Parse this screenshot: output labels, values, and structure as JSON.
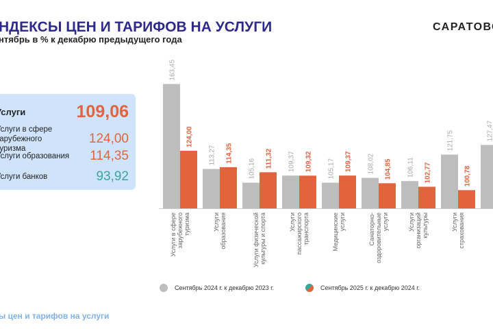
{
  "header": {
    "title": "НДЕКСЫ ЦЕН И ТАРИФОВ НА УСЛУГИ",
    "subtitle": "нтябрь в % к декабрю предыдущего года",
    "brand": "САРАТОВС"
  },
  "panel": {
    "rows": [
      {
        "label": "Услуги",
        "value": "109,06"
      },
      {
        "label": "Услуги в сфере зарубежного туризма",
        "value": "124,00"
      },
      {
        "label": "Услуги образования",
        "value": "114,35"
      },
      {
        "label": "Услуги банков",
        "value": "93,92"
      }
    ]
  },
  "footer": "ы цен и тарифов на услуги",
  "colors": {
    "gray": "#bdbdbd",
    "orange": "#e2643f",
    "teal": "#3aa59a",
    "title": "#2e2a8a"
  },
  "chart_data": {
    "type": "bar",
    "categories": [
      [
        "Услуги в сфере",
        "зарубежного",
        "туризма"
      ],
      [
        "Услуги",
        "образования"
      ],
      [
        "Услуги физической",
        "культуры и спорта"
      ],
      [
        "Услуги",
        "пассажирского",
        "транспорта"
      ],
      [
        "Медицинские",
        "услуги"
      ],
      [
        "Санаторно-",
        "оздоровительные",
        "услуги"
      ],
      [
        "Услуги",
        "организаций",
        "культуры"
      ],
      [
        "Услуги",
        "страхования"
      ],
      []
    ],
    "series": [
      {
        "name": "Сентябрь 2024 г. к декабрю  2023 г.",
        "values": [
          163.45,
          113.27,
          105.16,
          109.37,
          105.17,
          108.02,
          106.11,
          121.75,
          127.47
        ],
        "labels": [
          "163,45",
          "113,27",
          "105,16",
          "109,37",
          "105,17",
          "108,02",
          "106,11",
          "121,75",
          "127,47"
        ]
      },
      {
        "name": "Сентябрь  2025 г. к декабрю  2024 г.",
        "values": [
          124.0,
          114.35,
          111.32,
          109.32,
          109.37,
          104.85,
          102.77,
          100.78,
          null
        ],
        "labels": [
          "124,00",
          "114,35",
          "111,32",
          "109,32",
          "109,37",
          "104,85",
          "102,77",
          "100,78",
          ""
        ]
      }
    ],
    "ylim": [
      90,
      170
    ]
  }
}
